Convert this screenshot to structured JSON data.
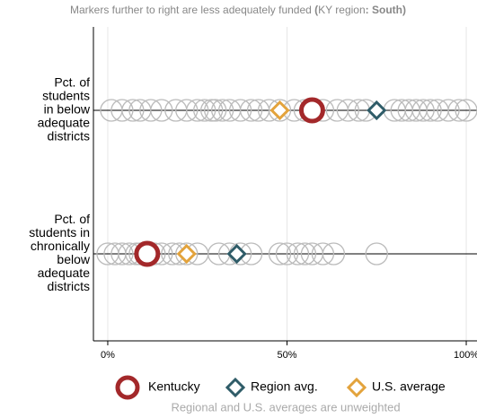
{
  "chart_data": {
    "type": "dot",
    "title": "Markers further to right are less adequately funded",
    "subtitle_parts": [
      "(",
      "KY region",
      ": ",
      "South",
      ")"
    ],
    "categories": [
      [
        "Pct. of",
        "students",
        "in below",
        "adequate",
        "districts"
      ],
      [
        "Pct. of",
        "students in",
        "chronically",
        "below",
        "adequate",
        "districts"
      ]
    ],
    "points": [
      [
        1,
        4,
        7,
        9,
        12,
        15,
        19,
        22,
        25,
        27,
        29,
        30,
        32,
        34,
        37,
        40,
        42,
        45,
        48,
        52,
        55,
        60,
        64,
        67,
        70,
        72,
        80,
        82,
        84,
        86,
        88,
        90,
        92,
        95,
        98,
        100
      ],
      [
        0,
        2,
        4,
        6,
        8,
        9,
        11,
        13,
        15,
        18,
        20,
        22,
        25,
        31,
        34,
        37,
        40,
        48,
        50,
        53,
        55,
        57,
        60,
        63,
        75
      ]
    ],
    "points_color": "#bbbbbb",
    "series": [
      {
        "name": "Kentucky",
        "color": "#a3282a",
        "marker": "circle",
        "values": [
          57,
          11
        ]
      },
      {
        "name": "Region avg.",
        "color": "#2f5c68",
        "marker": "diamond",
        "values": [
          75,
          36
        ]
      },
      {
        "name": "U.S. average",
        "color": "#e3a33c",
        "marker": "diamond",
        "values": [
          48,
          22
        ]
      }
    ],
    "xlim": [
      -4,
      103
    ],
    "xticks": [
      {
        "value": 0,
        "label": "0%"
      },
      {
        "value": 50,
        "label": "50%"
      },
      {
        "value": 100,
        "label": "100%"
      }
    ],
    "grid": true,
    "note": "Regional and U.S. averages are unweighted"
  }
}
